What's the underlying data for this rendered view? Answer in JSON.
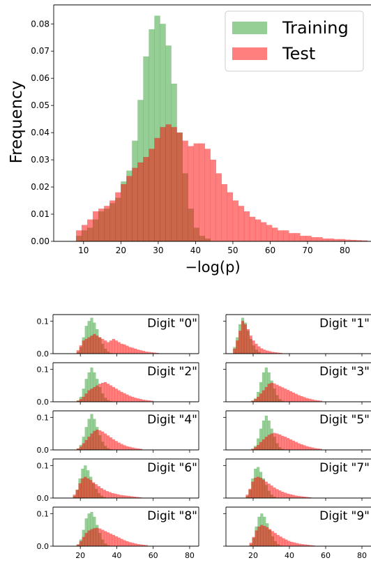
{
  "colors": {
    "training": "#2ca02c",
    "test": "#ff0000",
    "axis": "#000000"
  },
  "legend": {
    "placement": "upper-right",
    "entries": [
      "Training",
      "Test"
    ]
  },
  "chart_data": [
    {
      "type": "histogram",
      "title": "",
      "xlabel": "−log(p)",
      "ylabel": "Frequency",
      "xlim": [
        2,
        87
      ],
      "ylim": [
        0,
        0.087
      ],
      "xticks": [
        10,
        20,
        30,
        40,
        50,
        60,
        70,
        80
      ],
      "yticks": [
        0.0,
        0.01,
        0.02,
        0.03,
        0.04,
        0.05,
        0.06,
        0.07,
        0.08
      ],
      "ytick_labels": [
        "0.00",
        "0.01",
        "0.02",
        "0.03",
        "0.04",
        "0.05",
        "0.06",
        "0.07",
        "0.08"
      ],
      "grid": false,
      "legend": "upper right",
      "series": [
        {
          "name": "Training",
          "bin_start": 8,
          "bin_width": 1.5,
          "values": [
            0.002,
            0.004,
            0.005,
            0.008,
            0.011,
            0.012,
            0.014,
            0.016,
            0.022,
            0.026,
            0.037,
            0.052,
            0.068,
            0.078,
            0.083,
            0.08,
            0.072,
            0.058,
            0.04,
            0.025,
            0.012,
            0.005,
            0.002,
            0.001
          ]
        },
        {
          "name": "Test",
          "bin_start": 8,
          "bin_width": 1.5,
          "values": [
            0.004,
            0.006,
            0.008,
            0.011,
            0.012,
            0.013,
            0.015,
            0.018,
            0.021,
            0.024,
            0.027,
            0.029,
            0.031,
            0.034,
            0.038,
            0.042,
            0.043,
            0.042,
            0.04,
            0.037,
            0.035,
            0.036,
            0.036,
            0.034,
            0.03,
            0.025,
            0.021,
            0.018,
            0.015,
            0.013,
            0.011,
            0.009,
            0.008,
            0.007,
            0.006,
            0.005,
            0.004,
            0.004,
            0.003,
            0.003,
            0.002,
            0.002,
            0.0015,
            0.0015,
            0.001,
            0.001,
            0.0008,
            0.0008,
            0.0006,
            0.0005,
            0.0004,
            0.0003
          ]
        }
      ]
    },
    {
      "type": "histogram",
      "title": "",
      "annotation": "Digit \"0\"",
      "xlim": [
        5,
        85
      ],
      "ylim": [
        0,
        0.12
      ],
      "yticks": [
        0.0,
        0.1
      ],
      "ytick_labels": [
        "0.0",
        "0.1"
      ],
      "series": [
        {
          "name": "Training",
          "bin_start": 18,
          "bin_width": 1.5,
          "values": [
            0.005,
            0.02,
            0.05,
            0.085,
            0.1,
            0.11,
            0.095,
            0.075,
            0.05,
            0.03,
            0.015,
            0.006,
            0.002
          ]
        },
        {
          "name": "Test",
          "bin_start": 18,
          "bin_width": 1.5,
          "values": [
            0.01,
            0.025,
            0.04,
            0.045,
            0.05,
            0.055,
            0.06,
            0.055,
            0.05,
            0.045,
            0.04,
            0.035,
            0.04,
            0.045,
            0.04,
            0.035,
            0.03,
            0.028,
            0.024,
            0.02,
            0.018,
            0.015,
            0.012,
            0.01,
            0.008,
            0.006,
            0.005,
            0.004,
            0.003,
            0.002
          ]
        }
      ]
    },
    {
      "type": "histogram",
      "title": "",
      "annotation": "Digit \"1\"",
      "xlim": [
        5,
        85
      ],
      "ylim": [
        0,
        0.12
      ],
      "yticks": [
        0.0,
        0.1
      ],
      "ytick_labels": [
        "0.0",
        "0.1"
      ],
      "series": [
        {
          "name": "Training",
          "bin_start": 9,
          "bin_width": 1.5,
          "values": [
            0.02,
            0.05,
            0.09,
            0.11,
            0.095,
            0.07,
            0.045,
            0.025,
            0.012,
            0.005
          ]
        },
        {
          "name": "Test",
          "bin_start": 9,
          "bin_width": 1.5,
          "values": [
            0.015,
            0.04,
            0.07,
            0.1,
            0.09,
            0.075,
            0.055,
            0.04,
            0.03,
            0.022,
            0.016,
            0.012,
            0.009,
            0.007,
            0.005,
            0.004,
            0.003,
            0.002
          ]
        }
      ]
    },
    {
      "type": "histogram",
      "title": "",
      "annotation": "Digit \"2\"",
      "xlim": [
        5,
        85
      ],
      "ylim": [
        0,
        0.12
      ],
      "yticks": [
        0.0,
        0.1
      ],
      "ytick_labels": [
        "0.0",
        "0.1"
      ],
      "series": [
        {
          "name": "Training",
          "bin_start": 18,
          "bin_width": 1.5,
          "values": [
            0.004,
            0.015,
            0.04,
            0.07,
            0.09,
            0.105,
            0.09,
            0.07,
            0.045,
            0.025,
            0.012,
            0.005,
            0.002
          ]
        },
        {
          "name": "Test",
          "bin_start": 18,
          "bin_width": 1.5,
          "values": [
            0.003,
            0.008,
            0.015,
            0.025,
            0.035,
            0.04,
            0.045,
            0.05,
            0.055,
            0.058,
            0.06,
            0.055,
            0.05,
            0.045,
            0.04,
            0.035,
            0.03,
            0.026,
            0.022,
            0.018,
            0.015,
            0.012,
            0.01,
            0.008,
            0.006,
            0.005,
            0.004,
            0.003
          ]
        }
      ]
    },
    {
      "type": "histogram",
      "title": "",
      "annotation": "Digit \"3\"",
      "xlim": [
        5,
        85
      ],
      "ylim": [
        0,
        0.12
      ],
      "yticks": [
        0.0,
        0.1
      ],
      "ytick_labels": [
        "0.0",
        "0.1"
      ],
      "series": [
        {
          "name": "Training",
          "bin_start": 19,
          "bin_width": 1.5,
          "values": [
            0.003,
            0.01,
            0.03,
            0.06,
            0.09,
            0.105,
            0.09,
            0.065,
            0.04,
            0.02,
            0.008,
            0.003
          ]
        },
        {
          "name": "Test",
          "bin_start": 19,
          "bin_width": 1.5,
          "values": [
            0.003,
            0.008,
            0.015,
            0.025,
            0.035,
            0.045,
            0.055,
            0.058,
            0.056,
            0.052,
            0.048,
            0.044,
            0.04,
            0.036,
            0.032,
            0.028,
            0.024,
            0.02,
            0.017,
            0.014,
            0.011,
            0.009,
            0.007,
            0.005,
            0.004,
            0.003
          ]
        }
      ]
    },
    {
      "type": "histogram",
      "title": "",
      "annotation": "Digit \"4\"",
      "xlim": [
        5,
        85
      ],
      "ylim": [
        0,
        0.12
      ],
      "yticks": [
        0.0,
        0.1
      ],
      "ytick_labels": [
        "0.0",
        "0.1"
      ],
      "series": [
        {
          "name": "Training",
          "bin_start": 18,
          "bin_width": 1.5,
          "values": [
            0.004,
            0.015,
            0.04,
            0.07,
            0.095,
            0.11,
            0.095,
            0.07,
            0.045,
            0.025,
            0.012,
            0.005,
            0.002
          ]
        },
        {
          "name": "Test",
          "bin_start": 18,
          "bin_width": 1.5,
          "values": [
            0.004,
            0.01,
            0.02,
            0.03,
            0.04,
            0.05,
            0.058,
            0.062,
            0.06,
            0.056,
            0.05,
            0.044,
            0.038,
            0.032,
            0.027,
            0.022,
            0.018,
            0.014,
            0.011,
            0.009,
            0.007,
            0.005,
            0.004,
            0.003
          ]
        }
      ]
    },
    {
      "type": "histogram",
      "title": "",
      "annotation": "Digit \"5\"",
      "xlim": [
        5,
        85
      ],
      "ylim": [
        0,
        0.12
      ],
      "yticks": [
        0.0,
        0.1
      ],
      "ytick_labels": [
        "0.0",
        "0.1"
      ],
      "series": [
        {
          "name": "Training",
          "bin_start": 19,
          "bin_width": 1.5,
          "values": [
            0.003,
            0.012,
            0.035,
            0.065,
            0.09,
            0.105,
            0.09,
            0.065,
            0.04,
            0.02,
            0.008,
            0.003
          ]
        },
        {
          "name": "Test",
          "bin_start": 19,
          "bin_width": 1.5,
          "values": [
            0.003,
            0.008,
            0.015,
            0.024,
            0.032,
            0.04,
            0.046,
            0.05,
            0.052,
            0.05,
            0.047,
            0.043,
            0.04,
            0.036,
            0.032,
            0.028,
            0.024,
            0.02,
            0.017,
            0.014,
            0.011,
            0.009,
            0.007,
            0.005,
            0.004,
            0.003
          ]
        }
      ]
    },
    {
      "type": "histogram",
      "title": "",
      "annotation": "Digit \"6\"",
      "xlim": [
        5,
        85
      ],
      "ylim": [
        0,
        0.12
      ],
      "yticks": [
        0.0,
        0.1
      ],
      "ytick_labels": [
        "0.0",
        "0.1"
      ],
      "series": [
        {
          "name": "Training",
          "bin_start": 16,
          "bin_width": 1.5,
          "values": [
            0.006,
            0.025,
            0.06,
            0.09,
            0.1,
            0.085,
            0.065,
            0.045,
            0.028,
            0.015,
            0.007,
            0.003
          ]
        },
        {
          "name": "Test",
          "bin_start": 16,
          "bin_width": 1.5,
          "values": [
            0.01,
            0.025,
            0.045,
            0.06,
            0.065,
            0.06,
            0.055,
            0.048,
            0.042,
            0.036,
            0.03,
            0.025,
            0.021,
            0.018,
            0.015,
            0.013,
            0.011,
            0.009,
            0.008,
            0.007,
            0.006,
            0.005,
            0.004,
            0.003,
            0.002
          ]
        }
      ]
    },
    {
      "type": "histogram",
      "title": "",
      "annotation": "Digit \"7\"",
      "xlim": [
        5,
        85
      ],
      "ylim": [
        0,
        0.12
      ],
      "yticks": [
        0.0,
        0.1
      ],
      "ytick_labels": [
        "0.0",
        "0.1"
      ],
      "series": [
        {
          "name": "Training",
          "bin_start": 16,
          "bin_width": 1.5,
          "values": [
            0.006,
            0.025,
            0.06,
            0.09,
            0.095,
            0.08,
            0.06,
            0.04,
            0.022,
            0.01,
            0.004
          ]
        },
        {
          "name": "Test",
          "bin_start": 16,
          "bin_width": 1.5,
          "values": [
            0.01,
            0.028,
            0.05,
            0.062,
            0.065,
            0.062,
            0.056,
            0.05,
            0.044,
            0.038,
            0.032,
            0.027,
            0.023,
            0.019,
            0.016,
            0.013,
            0.011,
            0.009,
            0.007,
            0.006,
            0.005,
            0.004,
            0.003,
            0.002
          ]
        }
      ]
    },
    {
      "type": "histogram",
      "title": "",
      "annotation": "Digit \"8\"",
      "xlim": [
        5,
        85
      ],
      "ylim": [
        0,
        0.12
      ],
      "yticks": [
        0.0,
        0.1
      ],
      "ytick_labels": [
        "0.0",
        "0.1"
      ],
      "xticks": [
        20,
        40,
        60,
        80
      ],
      "series": [
        {
          "name": "Training",
          "bin_start": 18,
          "bin_width": 1.5,
          "values": [
            0.005,
            0.02,
            0.05,
            0.085,
            0.1,
            0.105,
            0.09,
            0.065,
            0.04,
            0.02,
            0.008,
            0.003
          ]
        },
        {
          "name": "Test",
          "bin_start": 18,
          "bin_width": 1.5,
          "values": [
            0.005,
            0.015,
            0.028,
            0.04,
            0.048,
            0.052,
            0.055,
            0.056,
            0.054,
            0.05,
            0.046,
            0.042,
            0.038,
            0.034,
            0.03,
            0.026,
            0.022,
            0.018,
            0.015,
            0.012,
            0.01,
            0.008,
            0.006,
            0.005,
            0.004,
            0.003
          ]
        }
      ]
    },
    {
      "type": "histogram",
      "title": "",
      "annotation": "Digit \"9\"",
      "xlim": [
        5,
        85
      ],
      "ylim": [
        0,
        0.12
      ],
      "yticks": [
        0.0,
        0.1
      ],
      "ytick_labels": [
        "0.0",
        "0.1"
      ],
      "xticks": [
        20,
        40,
        60,
        80
      ],
      "series": [
        {
          "name": "Training",
          "bin_start": 18,
          "bin_width": 1.5,
          "values": [
            0.005,
            0.025,
            0.06,
            0.09,
            0.1,
            0.09,
            0.07,
            0.05,
            0.03,
            0.015,
            0.006,
            0.002
          ]
        },
        {
          "name": "Test",
          "bin_start": 18,
          "bin_width": 1.5,
          "values": [
            0.01,
            0.028,
            0.048,
            0.06,
            0.065,
            0.062,
            0.058,
            0.052,
            0.046,
            0.04,
            0.034,
            0.029,
            0.024,
            0.02,
            0.016,
            0.013,
            0.011,
            0.009,
            0.007,
            0.006,
            0.005,
            0.004,
            0.003,
            0.002
          ]
        }
      ]
    }
  ]
}
